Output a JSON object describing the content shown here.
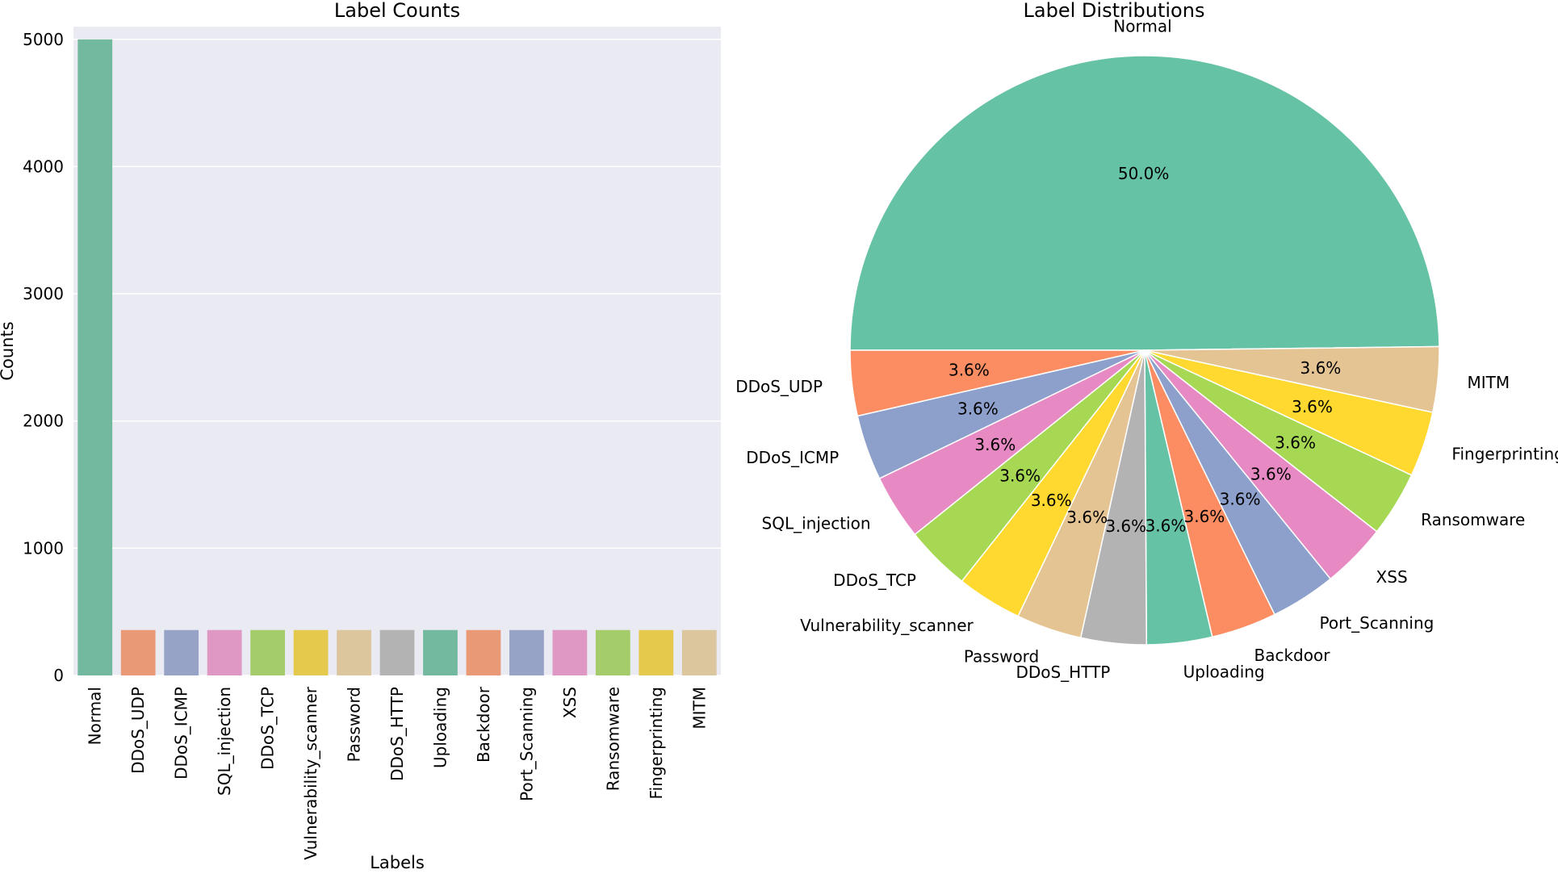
{
  "chart_data": [
    {
      "type": "bar",
      "title": "Label Counts",
      "xlabel": "Labels",
      "ylabel": "Counts",
      "ylim": [
        0,
        5100
      ],
      "yticks": [
        0,
        1000,
        2000,
        3000,
        4000,
        5000
      ],
      "grid": true,
      "categories": [
        "Normal",
        "DDoS_UDP",
        "DDoS_ICMP",
        "SQL_injection",
        "DDoS_TCP",
        "Vulnerability_scanner",
        "Password",
        "DDoS_HTTP",
        "Uploading",
        "Backdoor",
        "Port_Scanning",
        "XSS",
        "Ransomware",
        "Fingerprinting",
        "MITM"
      ],
      "values": [
        5000,
        357,
        357,
        357,
        357,
        357,
        357,
        357,
        357,
        357,
        357,
        357,
        357,
        357,
        357
      ],
      "colors": [
        "#73b99f",
        "#ea9977",
        "#97a3c6",
        "#df97c4",
        "#a5cc6b",
        "#e5c94c",
        "#dcc69e",
        "#b3b3b3",
        "#73b99f",
        "#ea9977",
        "#97a3c6",
        "#df97c4",
        "#a5cc6b",
        "#e5c94c",
        "#dcc69e"
      ]
    },
    {
      "type": "pie",
      "title": "Label Distributions",
      "labels": [
        "Normal",
        "MITM",
        "Fingerprinting",
        "Ransomware",
        "XSS",
        "Port_Scanning",
        "Backdoor",
        "Uploading",
        "DDoS_HTTP",
        "Password",
        "Vulnerability_scanner",
        "DDoS_TCP",
        "SQL_injection",
        "DDoS_ICMP",
        "DDoS_UDP"
      ],
      "values": [
        50.0,
        3.6,
        3.6,
        3.6,
        3.6,
        3.6,
        3.6,
        3.6,
        3.6,
        3.6,
        3.6,
        3.6,
        3.6,
        3.6,
        3.6
      ],
      "pct_labels": [
        "50.0%",
        "3.6%",
        "3.6%",
        "3.6%",
        "3.6%",
        "3.6%",
        "3.6%",
        "3.6%",
        "3.6%",
        "3.6%",
        "3.6%",
        "3.6%",
        "3.6%",
        "3.6%",
        "3.6%"
      ],
      "colors": [
        "#66c2a5",
        "#e5c494",
        "#ffd92f",
        "#a6d854",
        "#e78ac3",
        "#8da0cb",
        "#fc8d62",
        "#66c2a5",
        "#b3b3b3",
        "#e5c494",
        "#ffd92f",
        "#a6d854",
        "#e78ac3",
        "#8da0cb",
        "#fc8d62"
      ],
      "start_angle_deg": 180,
      "direction": "clockwise-on-screen"
    }
  ],
  "colors": {
    "plot_background": "#eaeaf2",
    "grid": "#ffffff"
  }
}
